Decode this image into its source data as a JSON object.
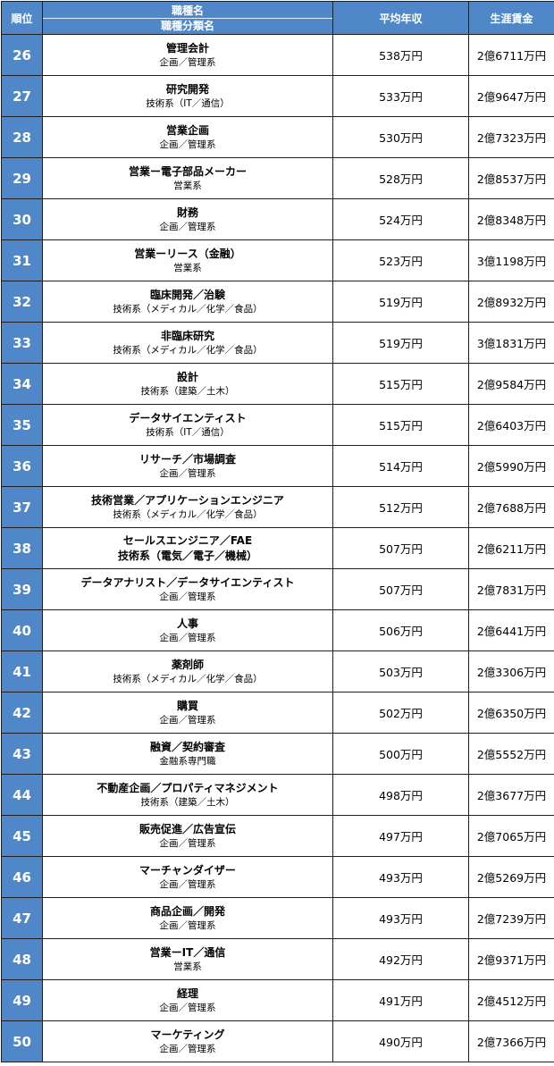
{
  "header": {
    "rank": "順位",
    "job_name": "職種名",
    "job_category": "職種分類名",
    "avg_income": "平均年収",
    "lifetime_wage": "生涯賃金"
  },
  "rows": [
    {
      "rank": "26",
      "title": "管理会計",
      "category": "企画／管理系",
      "income": "538万円",
      "lifetime": "2億6711万円"
    },
    {
      "rank": "27",
      "title": "研究開発",
      "category": "技術系（IT／通信）",
      "income": "533万円",
      "lifetime": "2億9647万円"
    },
    {
      "rank": "28",
      "title": "営業企画",
      "category": "企画／管理系",
      "income": "530万円",
      "lifetime": "2億7323万円"
    },
    {
      "rank": "29",
      "title": "営業ー電子部品メーカー",
      "category": "営業系",
      "income": "528万円",
      "lifetime": "2億8537万円"
    },
    {
      "rank": "30",
      "title": "財務",
      "category": "企画／管理系",
      "income": "524万円",
      "lifetime": "2億8348万円"
    },
    {
      "rank": "31",
      "title": "営業ーリース（金融）",
      "category": "営業系",
      "income": "523万円",
      "lifetime": "3億1198万円"
    },
    {
      "rank": "32",
      "title": "臨床開発／治験",
      "category": "技術系（メディカル／化学／食品）",
      "income": "519万円",
      "lifetime": "2億8932万円"
    },
    {
      "rank": "33",
      "title": "非臨床研究",
      "category": "技術系（メディカル／化学／食品）",
      "income": "519万円",
      "lifetime": "3億1831万円"
    },
    {
      "rank": "34",
      "title": "設計",
      "category": "技術系（建築／土木）",
      "income": "515万円",
      "lifetime": "2億9584万円"
    },
    {
      "rank": "35",
      "title": "データサイエンティスト",
      "category": "技術系（IT／通信）",
      "income": "515万円",
      "lifetime": "2億6403万円"
    },
    {
      "rank": "36",
      "title": "リサーチ／市場調査",
      "category": "企画／管理系",
      "income": "514万円",
      "lifetime": "2億5990万円"
    },
    {
      "rank": "37",
      "title": "技術営業／アプリケーションエンジニア",
      "category": "技術系（メディカル／化学／食品）",
      "income": "512万円",
      "lifetime": "2億7688万円"
    },
    {
      "rank": "38",
      "title": "セールスエンジニア／FAE",
      "category": "技術系（電気／電子／機械）",
      "category_bold": true,
      "income": "507万円",
      "lifetime": "2億6211万円"
    },
    {
      "rank": "39",
      "title": "データアナリスト／データサイエンティスト",
      "category": "企画／管理系",
      "income": "507万円",
      "lifetime": "2億7831万円"
    },
    {
      "rank": "40",
      "title": "人事",
      "category": "企画／管理系",
      "income": "506万円",
      "lifetime": "2億6441万円"
    },
    {
      "rank": "41",
      "title": "薬剤師",
      "category": "技術系（メディカル／化学／食品）",
      "income": "503万円",
      "lifetime": "2億3306万円"
    },
    {
      "rank": "42",
      "title": "購買",
      "category": "企画／管理系",
      "income": "502万円",
      "lifetime": "2億6350万円"
    },
    {
      "rank": "43",
      "title": "融資／契約審査",
      "category": "金融系専門職",
      "income": "500万円",
      "lifetime": "2億5552万円"
    },
    {
      "rank": "44",
      "title": "不動産企画／プロパティマネジメント",
      "category": "技術系（建築／土木）",
      "income": "498万円",
      "lifetime": "2億3677万円"
    },
    {
      "rank": "45",
      "title": "販売促進／広告宣伝",
      "category": "企画／管理系",
      "income": "497万円",
      "lifetime": "2億7065万円"
    },
    {
      "rank": "46",
      "title": "マーチャンダイザー",
      "category": "企画／管理系",
      "income": "493万円",
      "lifetime": "2億5269万円"
    },
    {
      "rank": "47",
      "title": "商品企画／開発",
      "category": "企画／管理系",
      "income": "493万円",
      "lifetime": "2億7239万円"
    },
    {
      "rank": "48",
      "title": "営業ーIT／通信",
      "category": "営業系",
      "income": "492万円",
      "lifetime": "2億9371万円"
    },
    {
      "rank": "49",
      "title": "経理",
      "category": "企画／管理系",
      "income": "491万円",
      "lifetime": "2億4512万円"
    },
    {
      "rank": "50",
      "title": "マーケティング",
      "category": "企画／管理系",
      "income": "490万円",
      "lifetime": "2億7366万円"
    }
  ]
}
